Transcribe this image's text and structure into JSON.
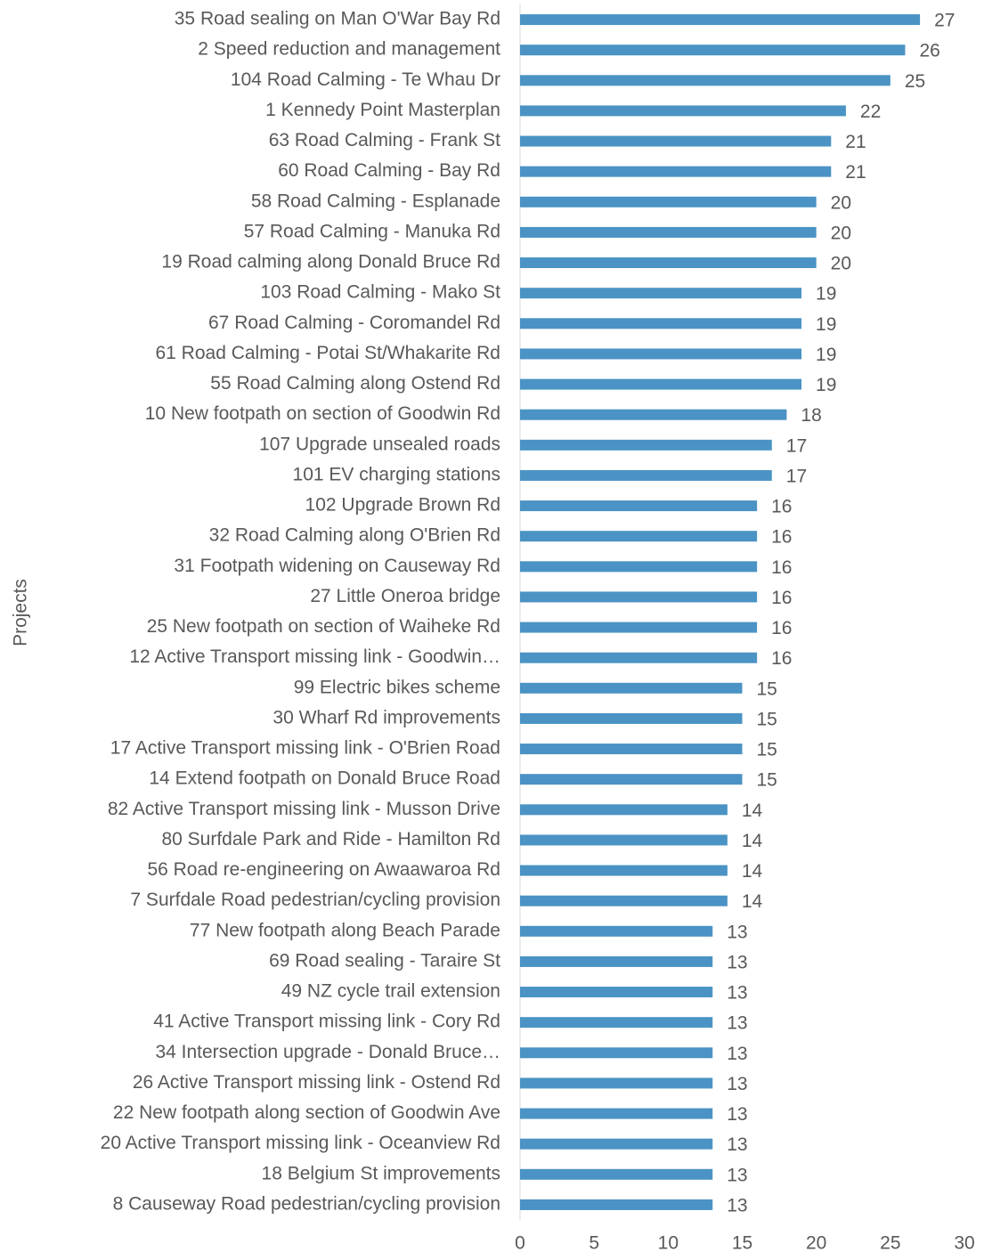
{
  "chart_data": {
    "type": "barh",
    "ylabel": "Projects",
    "categories": [
      "35 Road sealing on Man O'War Bay Rd",
      "2 Speed reduction and management",
      "104 Road Calming - Te Whau Dr",
      "1 Kennedy Point Masterplan",
      "63 Road Calming - Frank St",
      "60 Road Calming - Bay Rd",
      "58 Road Calming - Esplanade",
      "57 Road Calming - Manuka Rd",
      "19 Road calming along Donald Bruce Rd",
      "103 Road Calming - Mako St",
      "67 Road Calming - Coromandel Rd",
      "61 Road Calming - Potai St/Whakarite Rd",
      "55 Road Calming along Ostend Rd",
      "10 New footpath on section of Goodwin Rd",
      "107 Upgrade unsealed roads",
      "101 EV charging stations",
      "102 Upgrade Brown Rd",
      "32 Road Calming along O'Brien Rd",
      "31 Footpath widening on Causeway Rd",
      "27 Little Oneroa bridge",
      "25 New footpath on section of Waiheke Rd",
      "12 Active Transport missing link - Goodwin…",
      "99 Electric bikes scheme",
      "30 Wharf Rd improvements",
      "17 Active Transport missing link - O'Brien Road",
      "14 Extend footpath on Donald Bruce Road",
      "82 Active Transport missing link - Musson Drive",
      "80 Surfdale Park and Ride - Hamilton Rd",
      "56 Road re-engineering on Awaawaroa Rd",
      "7 Surfdale Road pedestrian/cycling provision",
      "77 New footpath along Beach Parade",
      "69 Road sealing - Taraire St",
      "49 NZ cycle trail extension",
      "41 Active Transport missing link - Cory Rd",
      "34 Intersection upgrade - Donald Bruce…",
      "26 Active Transport missing link - Ostend Rd",
      "22 New footpath along section of Goodwin Ave",
      "20 Active Transport missing link - Oceanview Rd",
      "18 Belgium St improvements",
      "8 Causeway Road pedestrian/cycling provision"
    ],
    "values": [
      27,
      26,
      25,
      22,
      21,
      21,
      20,
      20,
      20,
      19,
      19,
      19,
      19,
      18,
      17,
      17,
      16,
      16,
      16,
      16,
      16,
      16,
      15,
      15,
      15,
      15,
      14,
      14,
      14,
      14,
      13,
      13,
      13,
      13,
      13,
      13,
      13,
      13,
      13,
      13
    ],
    "color": "#4a93c4",
    "xlim": [
      0,
      30
    ],
    "xticks": [
      0,
      5,
      10,
      15,
      20,
      25,
      30
    ],
    "grid": false
  }
}
